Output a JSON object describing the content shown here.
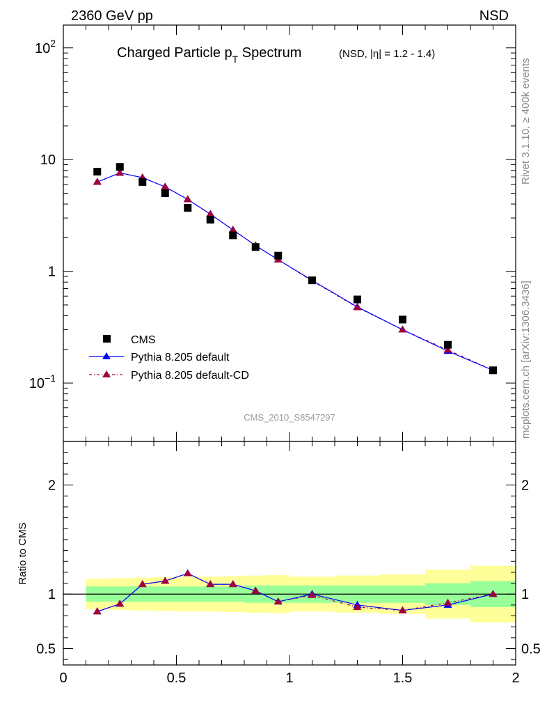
{
  "header": {
    "left": "2360 GeV pp",
    "right": "NSD"
  },
  "side_labels": {
    "rivet": "Rivet 3.1.10, ≥ 400k events",
    "mcplots": "mcplots.cern.ch [arXiv:1306.3436]"
  },
  "colors": {
    "data": "#000000",
    "pythia_default": "#0000ff",
    "pythia_cd": "#a0003c",
    "band_inner": "#99ff99",
    "band_outer": "#ffff99",
    "watermark": "#999999"
  },
  "chart_data": [
    {
      "type": "scatter",
      "title": "Charged Particle p",
      "title_sub": "T",
      "title_tail": " Spectrum",
      "title_small": "(NSD, |η| = 1.2 - 1.4)",
      "watermark": "CMS_2010_S8547297",
      "yscale": "log",
      "xlim": [
        0,
        2
      ],
      "ylim": [
        0.03,
        160
      ],
      "y_ticks": [
        {
          "value": 100,
          "base": "10",
          "exp": "2"
        },
        {
          "value": 10,
          "base": "10",
          "exp": ""
        },
        {
          "value": 1,
          "base": "1",
          "exp": ""
        },
        {
          "value": 0.1,
          "base": "10",
          "exp": "−1"
        }
      ],
      "legend": {
        "placement": "bottom-left",
        "entries": [
          "CMS",
          "Pythia 8.205 default",
          "Pythia 8.205 default-CD"
        ]
      },
      "series": [
        {
          "name": "CMS",
          "marker": "square",
          "x": [
            0.15,
            0.25,
            0.35,
            0.45,
            0.55,
            0.65,
            0.75,
            0.85,
            0.95,
            1.1,
            1.3,
            1.5,
            1.7,
            1.9
          ],
          "y": [
            7.8,
            8.6,
            6.3,
            5.0,
            3.7,
            2.9,
            2.1,
            1.65,
            1.38,
            0.83,
            0.56,
            0.37,
            0.22,
            0.13
          ]
        },
        {
          "name": "Pythia 8.205 default",
          "marker": "triangle",
          "x": [
            0.15,
            0.25,
            0.35,
            0.45,
            0.55,
            0.65,
            0.75,
            0.85,
            0.95,
            1.1,
            1.3,
            1.5,
            1.7,
            1.9
          ],
          "y": [
            6.3,
            7.6,
            6.9,
            5.7,
            4.4,
            3.25,
            2.35,
            1.7,
            1.27,
            0.83,
            0.48,
            0.3,
            0.193,
            0.13
          ]
        },
        {
          "name": "Pythia 8.205 default-CD",
          "marker": "triangle",
          "x": [
            0.15,
            0.25,
            0.35,
            0.45,
            0.55,
            0.65,
            0.75,
            0.85,
            0.95,
            1.1,
            1.3,
            1.5,
            1.7,
            1.9
          ],
          "y": [
            6.3,
            7.6,
            6.9,
            5.7,
            4.4,
            3.25,
            2.35,
            1.7,
            1.27,
            0.82,
            0.475,
            0.3,
            0.198,
            0.13
          ]
        }
      ]
    },
    {
      "type": "line",
      "ylabel": "Ratio to CMS",
      "xlim": [
        0,
        2
      ],
      "ylim": [
        0.35,
        2.4
      ],
      "x_ticks": [
        "0",
        "0.5",
        "1",
        "1.5",
        "2"
      ],
      "y_ticks": [
        {
          "value": 0.5,
          "label": "0.5"
        },
        {
          "value": 1,
          "label": "1"
        },
        {
          "value": 2,
          "label": "2"
        }
      ],
      "reference_line": 1,
      "bands": {
        "bins": [
          [
            0.1,
            0.2
          ],
          [
            0.2,
            0.3
          ],
          [
            0.3,
            0.4
          ],
          [
            0.4,
            0.5
          ],
          [
            0.5,
            0.6
          ],
          [
            0.6,
            0.7
          ],
          [
            0.7,
            0.8
          ],
          [
            0.8,
            0.9
          ],
          [
            0.9,
            1.0
          ],
          [
            1.0,
            1.2
          ],
          [
            1.2,
            1.4
          ],
          [
            1.4,
            1.6
          ],
          [
            1.6,
            1.8
          ],
          [
            1.8,
            2.0
          ]
        ],
        "inner_lo": [
          0.93,
          0.93,
          0.93,
          0.93,
          0.93,
          0.93,
          0.93,
          0.92,
          0.92,
          0.92,
          0.92,
          0.92,
          0.9,
          0.88
        ],
        "inner_hi": [
          1.07,
          1.07,
          1.07,
          1.07,
          1.07,
          1.07,
          1.07,
          1.08,
          1.08,
          1.08,
          1.08,
          1.08,
          1.1,
          1.12
        ],
        "outer_lo": [
          0.86,
          0.855,
          0.85,
          0.845,
          0.84,
          0.84,
          0.835,
          0.83,
          0.825,
          0.84,
          0.83,
          0.82,
          0.775,
          0.74
        ],
        "outer_hi": [
          1.14,
          1.145,
          1.15,
          1.155,
          1.16,
          1.16,
          1.165,
          1.17,
          1.175,
          1.16,
          1.17,
          1.18,
          1.225,
          1.26
        ]
      },
      "series": [
        {
          "name": "Pythia 8.205 default",
          "x": [
            0.15,
            0.25,
            0.35,
            0.45,
            0.55,
            0.65,
            0.75,
            0.85,
            0.95,
            1.1,
            1.3,
            1.5,
            1.7,
            1.9
          ],
          "y": [
            0.84,
            0.91,
            1.09,
            1.12,
            1.19,
            1.09,
            1.09,
            1.03,
            0.93,
            1.0,
            0.9,
            0.85,
            0.9,
            1.0
          ]
        },
        {
          "name": "Pythia 8.205 default-CD",
          "x": [
            0.15,
            0.25,
            0.35,
            0.45,
            0.55,
            0.65,
            0.75,
            0.85,
            0.95,
            1.1,
            1.3,
            1.5,
            1.7,
            1.9
          ],
          "y": [
            0.84,
            0.91,
            1.09,
            1.12,
            1.19,
            1.09,
            1.09,
            1.03,
            0.93,
            0.99,
            0.88,
            0.85,
            0.92,
            1.0
          ]
        }
      ]
    }
  ]
}
